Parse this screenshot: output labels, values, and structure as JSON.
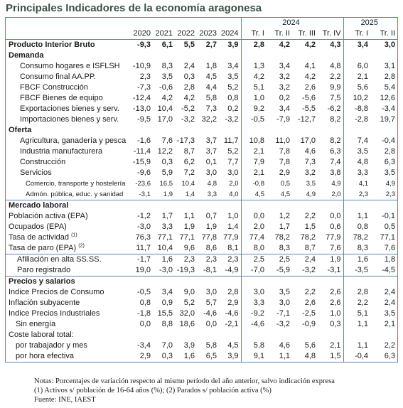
{
  "title": "Principales Indicadores de la economía aragonesa",
  "table": {
    "header": {
      "groups": [
        "2024",
        "2025"
      ],
      "columns": [
        "2020",
        "2021",
        "2022",
        "2023",
        "2024",
        "Tr. I",
        "Tr. II",
        "Tr. III",
        "Tr. IV",
        "Tr. I",
        "Tr. II"
      ]
    },
    "sections": [
      {
        "title": "Producto Interior Bruto",
        "values": [
          "-9,3",
          "6,1",
          "5,5",
          "2,7",
          "3,9",
          "2,8",
          "4,2",
          "4,2",
          "4,3",
          "3,4",
          "3,0"
        ],
        "groups": [
          {
            "title": "Demanda",
            "rows": [
              {
                "label": "Consumo hogares e ISFLSH",
                "values": [
                  "-10,9",
                  "8,3",
                  "2,4",
                  "1,8",
                  "3,4",
                  "1,3",
                  "3,4",
                  "4,1",
                  "4,8",
                  "6,0",
                  "3,1"
                ]
              },
              {
                "label": "Consumo final AA.PP.",
                "values": [
                  "2,3",
                  "3,5",
                  "0,3",
                  "4,5",
                  "3,5",
                  "4,2",
                  "3,2",
                  "4,2",
                  "2,2",
                  "2,1",
                  "2,8"
                ]
              },
              {
                "label": "FBCF Construcción",
                "values": [
                  "-7,3",
                  "-0,6",
                  "2,8",
                  "4,4",
                  "5,2",
                  "5,1",
                  "3,2",
                  "2,6",
                  "9,9",
                  "5,6",
                  "5,4"
                ]
              },
              {
                "label": "FBCF Bienes de equipo",
                "values": [
                  "-12,4",
                  "4,2",
                  "4,2",
                  "5,8",
                  "0,8",
                  "1,0",
                  "0,2",
                  "-5,6",
                  "7,5",
                  "10,2",
                  "12,6"
                ]
              },
              {
                "label": "Exportaciones bienes y serv.",
                "values": [
                  "-13,0",
                  "10,4",
                  "-5,2",
                  "7,3",
                  "0,2",
                  "9,2",
                  "3,4",
                  "-5,5",
                  "-6,2",
                  "-8,8",
                  "-3,4"
                ]
              },
              {
                "label": "Importaciones bienes y serv.",
                "values": [
                  "-9,5",
                  "17,0",
                  "-3,2",
                  "32,2",
                  "-3,2",
                  "-0,5",
                  "-7,9",
                  "-12,7",
                  "8,2",
                  "-2,8",
                  "19,7"
                ]
              }
            ]
          },
          {
            "title": "Oferta",
            "rows": [
              {
                "label": "Agricultura, ganadería y pesca",
                "values": [
                  "-1,6",
                  "7,6",
                  "-17,3",
                  "3,7",
                  "11,7",
                  "10,8",
                  "11,0",
                  "17,0",
                  "8,2",
                  "7,4",
                  "-0,4"
                ]
              },
              {
                "label": "Industria manufacturera",
                "values": [
                  "-11,4",
                  "12,2",
                  "8,7",
                  "3,7",
                  "5,2",
                  "2,1",
                  "7,8",
                  "4,6",
                  "6,3",
                  "3,5",
                  "2,8"
                ]
              },
              {
                "label": "Construcción",
                "values": [
                  "-15,9",
                  "0,3",
                  "6,2",
                  "0,1",
                  "7,7",
                  "7,9",
                  "7,8",
                  "7,3",
                  "7,4",
                  "4,8",
                  "6,3"
                ]
              },
              {
                "label": "Servicios",
                "values": [
                  "-9,6",
                  "5,9",
                  "7,2",
                  "3,0",
                  "3,0",
                  "2,1",
                  "2,9",
                  "3,2",
                  "3,8",
                  "3,3",
                  "3,5"
                ],
                "rows": [
                  {
                    "label": "Comercio, transporte y hostelería",
                    "values": [
                      "-23,6",
                      "16,5",
                      "10,4",
                      "4,8",
                      "2,0",
                      "-0,8",
                      "0,5",
                      "3,5",
                      "4,9",
                      "4,1",
                      "4,9"
                    ]
                  },
                  {
                    "label": "Admón. pública, educ. y sanidad",
                    "values": [
                      "-3,1",
                      "1,9",
                      "1,4",
                      "3,3",
                      "4,0",
                      "4,5",
                      "4,5",
                      "4,9",
                      "2,0",
                      "2,3",
                      "2,3"
                    ]
                  }
                ]
              }
            ]
          }
        ]
      },
      {
        "title": "Mercado laboral",
        "groups": [
          {
            "rows": [
              {
                "label": "Población activa (EPA)",
                "values": [
                  "-1,2",
                  "1,7",
                  "1,1",
                  "0,7",
                  "1,0",
                  "0,0",
                  "1,2",
                  "2,2",
                  "0,0",
                  "1,1",
                  "-0,1"
                ]
              },
              {
                "label": "Ocupados (EPA)",
                "values": [
                  "-3,0",
                  "3,3",
                  "1,9",
                  "1,9",
                  "1,4",
                  "2,0",
                  "1,7",
                  "1,5",
                  "0,6",
                  "0,8",
                  "0,5"
                ]
              },
              {
                "label": "Tasa de actividad",
                "note": "(1)",
                "values": [
                  "76,3",
                  "77,1",
                  "77,1",
                  "77,8",
                  "77,9",
                  "77,4",
                  "78,2",
                  "78,2",
                  "77,9",
                  "78,2",
                  "77,1"
                ]
              },
              {
                "label": "Tasa de paro (EPA)",
                "note": "(2)",
                "values": [
                  "11,7",
                  "10,4",
                  "9,6",
                  "8,6",
                  "8,1",
                  "8,0",
                  "8,3",
                  "8,7",
                  "7,6",
                  "8,3",
                  "7,6"
                ]
              }
            ]
          },
          {
            "rows": [
              {
                "label": "Afiliación en alta SS.SS.",
                "values": [
                  "-1,7",
                  "1,6",
                  "2,3",
                  "2,3",
                  "2,3",
                  "2,5",
                  "2,5",
                  "2,4",
                  "1,9",
                  "1,6",
                  "1,8"
                ]
              },
              {
                "label": "Paro registrado",
                "values": [
                  "19,0",
                  "-3,0",
                  "-19,3",
                  "-8,1",
                  "-4,9",
                  "-7,0",
                  "-5,9",
                  "-3,2",
                  "-3,1",
                  "-3,5",
                  "-4,5"
                ]
              }
            ]
          }
        ]
      },
      {
        "title": "Precios y salarios",
        "groups": [
          {
            "rows": [
              {
                "label": "Indice Precios de Consumo",
                "values": [
                  "-0,5",
                  "3,4",
                  "9,0",
                  "3,0",
                  "2,8",
                  "3,0",
                  "3,5",
                  "2,2",
                  "2,6",
                  "2,8",
                  "2,4"
                ]
              },
              {
                "label": "Inflación subyacente",
                "values": [
                  "0,8",
                  "0,9",
                  "5,2",
                  "5,7",
                  "2,9",
                  "3,3",
                  "3,0",
                  "2,6",
                  "2,6",
                  "2,2",
                  "2,4"
                ]
              },
              {
                "label": "Indice Precios Industriales",
                "values": [
                  "-1,8",
                  "15,5",
                  "32,0",
                  "-4,6",
                  "-4,6",
                  "-9,2",
                  "-7,1",
                  "-2,5",
                  "1,0",
                  "5,1",
                  "3,5"
                ],
                "rows": [
                  {
                    "label": "Sin energía",
                    "values": [
                      "0,0",
                      "8,8",
                      "18,6",
                      "0,0",
                      "-2,1",
                      "-4,6",
                      "-3,2",
                      "-0,9",
                      "0,3",
                      "1,1",
                      "2,1"
                    ]
                  }
                ]
              },
              {
                "label": "Coste laboral total:",
                "rows": [
                  {
                    "label": "por trabajador y mes",
                    "values": [
                      "-3,4",
                      "7,0",
                      "3,9",
                      "5,8",
                      "4,5",
                      "5,8",
                      "4,6",
                      "5,6",
                      "2,1",
                      "1,1",
                      "2,2"
                    ]
                  },
                  {
                    "label": "por hora efectiva",
                    "values": [
                      "2,9",
                      "0,3",
                      "1,6",
                      "6,5",
                      "3,9",
                      "9,1",
                      "1,1",
                      "4,8",
                      "1,5",
                      "-0,4",
                      "6,3"
                    ]
                  }
                ]
              }
            ]
          }
        ]
      }
    ]
  },
  "notes": [
    "Notas: Porcentajes de variación respecto al mismo período del año anterior, salvo indicación expresa",
    "(1) Activos s/ población de 16-64 años (%); (2) Parados s/ población activa (%)",
    "Fuente: INE, IAEST"
  ]
}
